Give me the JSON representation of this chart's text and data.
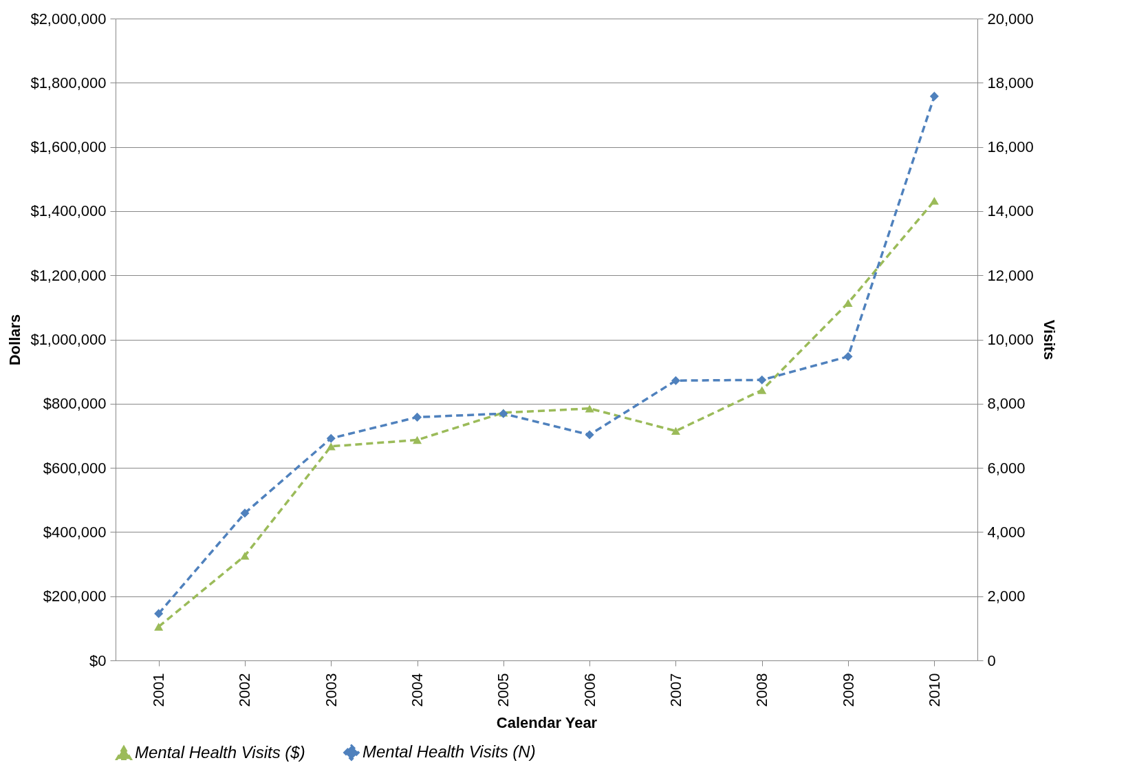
{
  "chart_data": {
    "type": "line",
    "xlabel": "Calendar Year",
    "ylabel": "Dollars",
    "y2label": "Visits",
    "categories": [
      "2001",
      "2002",
      "2003",
      "2004",
      "2005",
      "2006",
      "2007",
      "2008",
      "2009",
      "2010"
    ],
    "series": [
      {
        "name": "Mental Health Visits ($)",
        "color": "#9bbb59",
        "marker": "triangle",
        "line_style": "dashed",
        "values": [
          105000,
          326000,
          667000,
          687000,
          772000,
          785000,
          715000,
          842000,
          1114000,
          1432000
        ]
      },
      {
        "name": "Mental Health Visits (N)",
        "color": "#4f81bd",
        "marker": "diamond",
        "line_style": "dashed",
        "axis": "y2",
        "values": [
          1460,
          4590,
          6920,
          7580,
          7690,
          7030,
          8720,
          8740,
          9470,
          17580
        ]
      }
    ],
    "ylim": [
      0,
      2000000
    ],
    "yticks": [
      {
        "value": 0,
        "label": "$0"
      },
      {
        "value": 200000,
        "label": "$200,000"
      },
      {
        "value": 400000,
        "label": "$400,000"
      },
      {
        "value": 600000,
        "label": "$600,000"
      },
      {
        "value": 800000,
        "label": "$800,000"
      },
      {
        "value": 1000000,
        "label": "$1,000,000"
      },
      {
        "value": 1200000,
        "label": "$1,200,000"
      },
      {
        "value": 1400000,
        "label": "$1,400,000"
      },
      {
        "value": 1600000,
        "label": "$1,600,000"
      },
      {
        "value": 1800000,
        "label": "$1,800,000"
      },
      {
        "value": 2000000,
        "label": "$2,000,000"
      }
    ],
    "y2lim": [
      0,
      20000
    ],
    "y2ticks": [
      {
        "value": 0,
        "label": "0"
      },
      {
        "value": 2000,
        "label": "2,000"
      },
      {
        "value": 4000,
        "label": "4,000"
      },
      {
        "value": 6000,
        "label": "6,000"
      },
      {
        "value": 8000,
        "label": "8,000"
      },
      {
        "value": 10000,
        "label": "10,000"
      },
      {
        "value": 12000,
        "label": "12,000"
      },
      {
        "value": 14000,
        "label": "14,000"
      },
      {
        "value": 16000,
        "label": "16,000"
      },
      {
        "value": 18000,
        "label": "18,000"
      },
      {
        "value": 20000,
        "label": "20,000"
      }
    ],
    "grid": "y",
    "legend": "bottom"
  }
}
